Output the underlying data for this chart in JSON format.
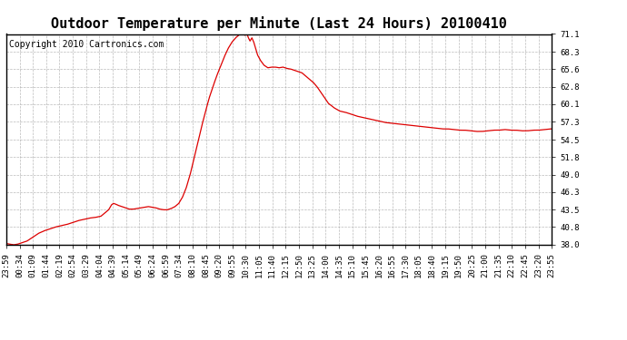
{
  "title": "Outdoor Temperature per Minute (Last 24 Hours) 20100410",
  "copyright_text": "Copyright 2010 Cartronics.com",
  "line_color": "#dd0000",
  "bg_color": "#ffffff",
  "plot_bg_color": "#ffffff",
  "grid_color": "#aaaaaa",
  "ylim": [
    38.0,
    71.1
  ],
  "yticks": [
    38.0,
    40.8,
    43.5,
    46.3,
    49.0,
    51.8,
    54.5,
    57.3,
    60.1,
    62.8,
    65.6,
    68.3,
    71.1
  ],
  "xtick_labels": [
    "23:59",
    "00:34",
    "01:09",
    "01:44",
    "02:19",
    "02:54",
    "03:29",
    "04:04",
    "04:39",
    "05:14",
    "05:49",
    "06:24",
    "06:59",
    "07:34",
    "08:10",
    "08:45",
    "09:20",
    "09:55",
    "10:30",
    "11:05",
    "11:40",
    "12:15",
    "12:50",
    "13:25",
    "14:00",
    "14:35",
    "15:10",
    "15:45",
    "16:20",
    "16:55",
    "17:30",
    "18:05",
    "18:40",
    "19:15",
    "19:50",
    "20:25",
    "21:00",
    "21:35",
    "22:10",
    "22:45",
    "23:20",
    "23:55"
  ],
  "key_points_minutes": [
    [
      0,
      38.2
    ],
    [
      10,
      38.1
    ],
    [
      20,
      38.0
    ],
    [
      30,
      38.1
    ],
    [
      40,
      38.3
    ],
    [
      55,
      38.6
    ],
    [
      70,
      39.2
    ],
    [
      85,
      39.8
    ],
    [
      100,
      40.2
    ],
    [
      115,
      40.5
    ],
    [
      130,
      40.8
    ],
    [
      145,
      41.0
    ],
    [
      160,
      41.2
    ],
    [
      175,
      41.5
    ],
    [
      190,
      41.8
    ],
    [
      205,
      42.0
    ],
    [
      220,
      42.2
    ],
    [
      235,
      42.3
    ],
    [
      250,
      42.5
    ],
    [
      260,
      43.0
    ],
    [
      270,
      43.5
    ],
    [
      278,
      44.3
    ],
    [
      283,
      44.5
    ],
    [
      288,
      44.4
    ],
    [
      295,
      44.2
    ],
    [
      305,
      44.0
    ],
    [
      315,
      43.8
    ],
    [
      325,
      43.6
    ],
    [
      335,
      43.6
    ],
    [
      345,
      43.7
    ],
    [
      355,
      43.8
    ],
    [
      365,
      43.9
    ],
    [
      375,
      44.0
    ],
    [
      385,
      43.9
    ],
    [
      395,
      43.8
    ],
    [
      405,
      43.6
    ],
    [
      415,
      43.5
    ],
    [
      425,
      43.5
    ],
    [
      435,
      43.7
    ],
    [
      445,
      44.0
    ],
    [
      455,
      44.5
    ],
    [
      465,
      45.5
    ],
    [
      475,
      47.0
    ],
    [
      485,
      49.0
    ],
    [
      495,
      51.5
    ],
    [
      505,
      54.0
    ],
    [
      515,
      56.5
    ],
    [
      525,
      58.8
    ],
    [
      535,
      61.0
    ],
    [
      545,
      62.8
    ],
    [
      555,
      64.5
    ],
    [
      565,
      66.0
    ],
    [
      575,
      67.5
    ],
    [
      585,
      68.8
    ],
    [
      595,
      69.8
    ],
    [
      605,
      70.5
    ],
    [
      615,
      71.0
    ],
    [
      625,
      71.1
    ],
    [
      630,
      70.9
    ],
    [
      635,
      71.1
    ],
    [
      638,
      70.6
    ],
    [
      643,
      70.0
    ],
    [
      648,
      70.5
    ],
    [
      653,
      69.8
    ],
    [
      658,
      68.8
    ],
    [
      663,
      67.8
    ],
    [
      670,
      67.0
    ],
    [
      680,
      66.2
    ],
    [
      690,
      65.8
    ],
    [
      700,
      65.9
    ],
    [
      710,
      65.9
    ],
    [
      720,
      65.8
    ],
    [
      730,
      65.9
    ],
    [
      740,
      65.7
    ],
    [
      750,
      65.6
    ],
    [
      760,
      65.4
    ],
    [
      770,
      65.2
    ],
    [
      780,
      65.0
    ],
    [
      790,
      64.5
    ],
    [
      800,
      64.0
    ],
    [
      810,
      63.5
    ],
    [
      820,
      62.8
    ],
    [
      835,
      61.5
    ],
    [
      850,
      60.2
    ],
    [
      865,
      59.5
    ],
    [
      880,
      59.0
    ],
    [
      895,
      58.8
    ],
    [
      910,
      58.5
    ],
    [
      925,
      58.2
    ],
    [
      940,
      58.0
    ],
    [
      955,
      57.8
    ],
    [
      970,
      57.6
    ],
    [
      985,
      57.4
    ],
    [
      1000,
      57.2
    ],
    [
      1015,
      57.1
    ],
    [
      1030,
      57.0
    ],
    [
      1045,
      56.9
    ],
    [
      1060,
      56.8
    ],
    [
      1075,
      56.7
    ],
    [
      1090,
      56.6
    ],
    [
      1105,
      56.5
    ],
    [
      1120,
      56.4
    ],
    [
      1135,
      56.3
    ],
    [
      1150,
      56.2
    ],
    [
      1165,
      56.2
    ],
    [
      1180,
      56.1
    ],
    [
      1195,
      56.0
    ],
    [
      1210,
      56.0
    ],
    [
      1225,
      55.9
    ],
    [
      1240,
      55.8
    ],
    [
      1255,
      55.8
    ],
    [
      1270,
      55.9
    ],
    [
      1285,
      56.0
    ],
    [
      1300,
      56.0
    ],
    [
      1315,
      56.1
    ],
    [
      1330,
      56.0
    ],
    [
      1345,
      56.0
    ],
    [
      1360,
      55.9
    ],
    [
      1375,
      55.9
    ],
    [
      1390,
      56.0
    ],
    [
      1405,
      56.0
    ],
    [
      1420,
      56.1
    ],
    [
      1435,
      56.2
    ]
  ],
  "num_minutes": 1440,
  "title_fontsize": 11,
  "tick_fontsize": 6.5,
  "copyright_fontsize": 7
}
